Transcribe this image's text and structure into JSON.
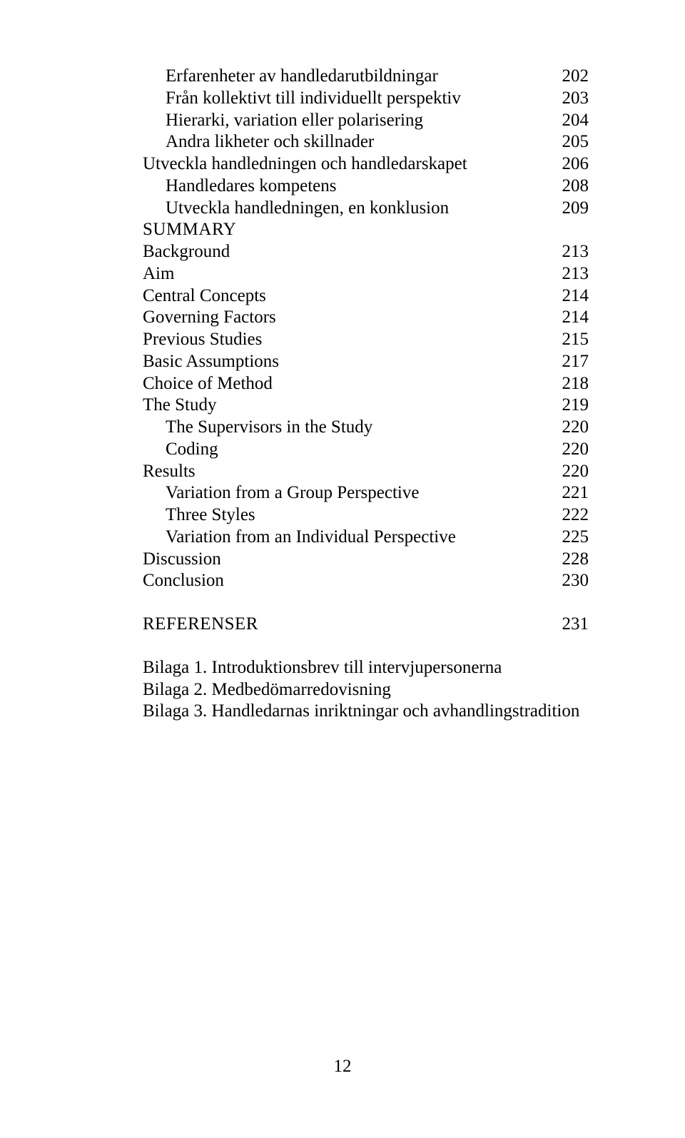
{
  "toc": [
    {
      "label": "Erfarenheter av handledarutbildningar",
      "page": "202",
      "indent": 1
    },
    {
      "label": "Från kollektivt till individuellt perspektiv",
      "page": "203",
      "indent": 1
    },
    {
      "label": "Hierarki, variation eller polarisering",
      "page": "204",
      "indent": 1
    },
    {
      "label": "Andra likheter och skillnader",
      "page": "205",
      "indent": 1
    },
    {
      "label": "Utveckla handledningen och handledarskapet",
      "page": "206",
      "indent": 0
    },
    {
      "label": "Handledares kompetens",
      "page": "208",
      "indent": 1
    },
    {
      "label": "Utveckla handledningen, en konklusion",
      "page": "209",
      "indent": 1
    },
    {
      "label": "SUMMARY",
      "page": "",
      "indent": 0,
      "smallcaps": true
    },
    {
      "label": "Background",
      "page": "213",
      "indent": 0
    },
    {
      "label": "Aim",
      "page": "213",
      "indent": 0
    },
    {
      "label": "Central Concepts",
      "page": "214",
      "indent": 0
    },
    {
      "label": "Governing Factors",
      "page": "214",
      "indent": 0
    },
    {
      "label": "Previous Studies",
      "page": "215",
      "indent": 0
    },
    {
      "label": "Basic Assumptions",
      "page": "217",
      "indent": 0
    },
    {
      "label": "Choice of Method",
      "page": "218",
      "indent": 0
    },
    {
      "label": "The Study",
      "page": "219",
      "indent": 0
    },
    {
      "label": "The Supervisors in the Study",
      "page": "220",
      "indent": 1
    },
    {
      "label": "Coding",
      "page": "220",
      "indent": 1
    },
    {
      "label": "Results",
      "page": "220",
      "indent": 0
    },
    {
      "label": "Variation from a Group Perspective",
      "page": "221",
      "indent": 1
    },
    {
      "label": "Three Styles",
      "page": "222",
      "indent": 1
    },
    {
      "label": "Variation from an Individual Perspective",
      "page": "225",
      "indent": 1
    },
    {
      "label": "Discussion",
      "page": "228",
      "indent": 0
    },
    {
      "label": "Conclusion",
      "page": "230",
      "indent": 0
    }
  ],
  "references": {
    "label": "REFERENSER",
    "page": "231"
  },
  "appendices": [
    "Bilaga 1. Introduktionsbrev till intervjupersonerna",
    "Bilaga 2. Medbedömarredovisning",
    "Bilaga 3. Handledarnas inriktningar och avhandlingstradition"
  ],
  "pageNumber": "12"
}
